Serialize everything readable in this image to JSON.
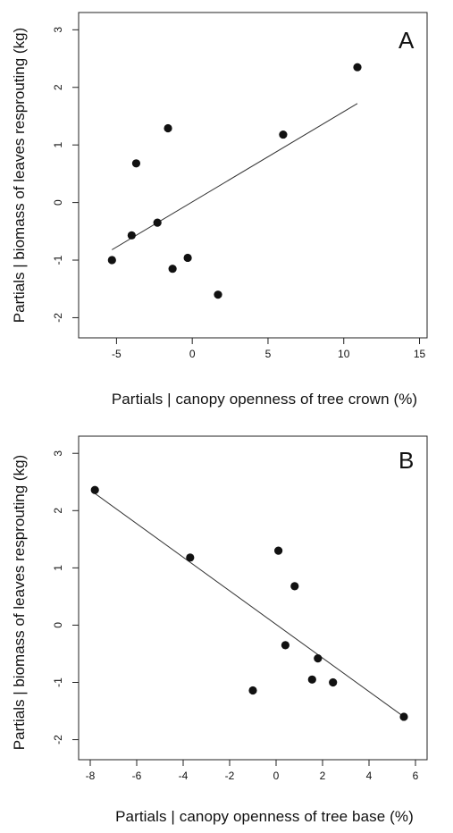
{
  "chart_data": [
    {
      "type": "scatter",
      "panel_label": "A",
      "xlabel": "Partials | canopy openness of tree crown (%)",
      "ylabel": "Partials | biomass of leaves resprouting (kg)",
      "xlim": [
        -7.5,
        15.5
      ],
      "ylim": [
        -2.35,
        3.3
      ],
      "xticks": [
        -5,
        0,
        5,
        10,
        15
      ],
      "yticks": [
        -2,
        -1,
        0,
        1,
        2,
        3
      ],
      "tick_labels_x": [
        "-5",
        "0",
        "5",
        "10",
        "15"
      ],
      "tick_labels_y": [
        "-2",
        "-1",
        "0",
        "1",
        "2",
        "3"
      ],
      "points": [
        {
          "x": -5.3,
          "y": -1.0
        },
        {
          "x": -4.0,
          "y": -0.57
        },
        {
          "x": -3.7,
          "y": 0.68
        },
        {
          "x": -2.3,
          "y": -0.35
        },
        {
          "x": -1.6,
          "y": 1.29
        },
        {
          "x": -1.3,
          "y": -1.15
        },
        {
          "x": -0.3,
          "y": -0.96
        },
        {
          "x": 1.7,
          "y": -1.6
        },
        {
          "x": 6.0,
          "y": 1.18
        },
        {
          "x": 10.9,
          "y": 2.35
        }
      ],
      "fit_line": {
        "x": [
          -5.3,
          10.9
        ],
        "y": [
          -0.82,
          1.72
        ]
      },
      "grid": false
    },
    {
      "type": "scatter",
      "panel_label": "B",
      "xlabel": "Partials | canopy openness of tree base (%)",
      "ylabel": "Partials | biomass of leaves resprouting (kg)",
      "xlim": [
        -8.5,
        6.5
      ],
      "ylim": [
        -2.35,
        3.3
      ],
      "xticks": [
        -8,
        -6,
        -4,
        -2,
        0,
        2,
        4,
        6
      ],
      "yticks": [
        -2,
        -1,
        0,
        1,
        2,
        3
      ],
      "tick_labels_x": [
        "-8",
        "-6",
        "-4",
        "-2",
        "0",
        "2",
        "4",
        "6"
      ],
      "tick_labels_y": [
        "-2",
        "-1",
        "0",
        "1",
        "2",
        "3"
      ],
      "points": [
        {
          "x": -7.8,
          "y": 2.36
        },
        {
          "x": -3.7,
          "y": 1.18
        },
        {
          "x": -1.0,
          "y": -1.14
        },
        {
          "x": 0.1,
          "y": 1.3
        },
        {
          "x": 0.4,
          "y": -0.35
        },
        {
          "x": 0.8,
          "y": 0.68
        },
        {
          "x": 1.55,
          "y": -0.95
        },
        {
          "x": 1.8,
          "y": -0.58
        },
        {
          "x": 2.45,
          "y": -1.0
        },
        {
          "x": 5.5,
          "y": -1.6
        }
      ],
      "fit_line": {
        "x": [
          -7.8,
          5.5
        ],
        "y": [
          2.3,
          -1.6
        ]
      },
      "grid": false
    }
  ]
}
